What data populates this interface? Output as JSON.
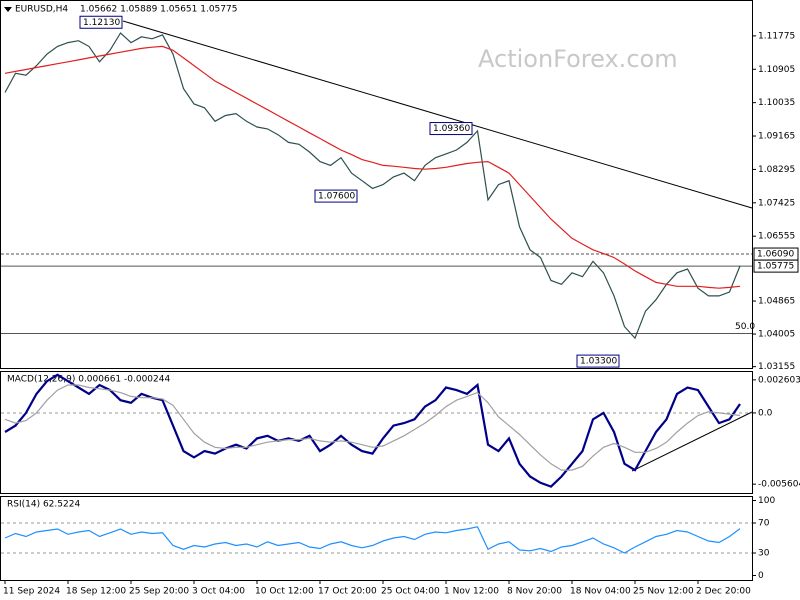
{
  "chart_data": [
    {
      "type": "line",
      "title": "EURUSD,H4",
      "subtitle": "1.05662 1.05889 1.05651 1.05775",
      "watermark": "ActionForex.com",
      "categories": [
        "11 Sep 2024",
        null,
        null,
        null,
        null,
        null,
        "18 Sep 12:00",
        null,
        null,
        null,
        null,
        null,
        "25 Sep 20:00",
        null,
        null,
        null,
        null,
        null,
        "3 Oct 04:00",
        null,
        null,
        null,
        null,
        null,
        "10 Oct 12:00",
        null,
        null,
        null,
        null,
        null,
        "17 Oct 20:00",
        null,
        null,
        null,
        null,
        null,
        "25 Oct 04:00",
        null,
        null,
        null,
        null,
        null,
        "1 Nov 12:00",
        null,
        null,
        null,
        null,
        null,
        "8 Nov 20:00",
        null,
        null,
        null,
        null,
        null,
        "18 Nov 04:00",
        null,
        null,
        null,
        null,
        null,
        "25 Nov 12:00",
        null,
        null,
        null,
        null,
        null,
        "2 Dec 20:00",
        null,
        null,
        null,
        null
      ],
      "series": [
        {
          "color": "#2f4f4f",
          "values": [
            1.103,
            1.108,
            1.1075,
            1.11,
            1.113,
            1.115,
            1.116,
            1.1165,
            1.115,
            1.111,
            1.114,
            1.1185,
            1.116,
            1.1175,
            1.117,
            1.118,
            1.113,
            1.104,
            1.1,
            1.099,
            1.0955,
            1.097,
            1.0975,
            1.0955,
            1.094,
            1.0935,
            1.092,
            1.09,
            1.0895,
            1.0875,
            1.085,
            1.084,
            1.086,
            1.082,
            1.08,
            1.078,
            1.079,
            1.081,
            1.082,
            1.08,
            1.084,
            1.086,
            1.087,
            1.088,
            1.09,
            1.093,
            1.075,
            1.079,
            1.08,
            1.068,
            1.062,
            1.06,
            1.054,
            1.053,
            1.056,
            1.055,
            1.059,
            1.056,
            1.05,
            1.042,
            1.039,
            1.046,
            1.049,
            1.053,
            1.056,
            1.057,
            1.052,
            1.05,
            1.05,
            1.051,
            1.0578
          ]
        },
        {
          "color": "#e02020",
          "values": [
            1.108,
            1.1085,
            1.109,
            1.1095,
            1.11,
            1.1105,
            1.111,
            1.1115,
            1.112,
            1.1125,
            1.113,
            1.1135,
            1.114,
            1.1145,
            1.1148,
            1.115,
            1.114,
            1.112,
            1.11,
            1.108,
            1.106,
            1.1045,
            1.103,
            1.1015,
            1.1,
            1.0985,
            1.097,
            1.0955,
            1.094,
            1.0925,
            1.091,
            1.0895,
            1.088,
            1.0868,
            1.0855,
            1.0848,
            1.084,
            1.0838,
            1.0835,
            1.0832,
            1.083,
            1.0832,
            1.0835,
            1.084,
            1.0845,
            1.0848,
            1.085,
            1.0835,
            1.082,
            1.079,
            1.076,
            1.073,
            1.07,
            1.0675,
            1.065,
            1.0635,
            1.062,
            1.061,
            1.06,
            1.0583,
            1.0565,
            1.055,
            1.0535,
            1.053,
            1.0525,
            1.0525,
            1.0525,
            1.0522,
            1.052,
            1.0522,
            1.0525
          ]
        }
      ],
      "ylim": [
        1.0312,
        1.1271
      ],
      "yticks": [
        1.11775,
        1.10905,
        1.10035,
        1.09165,
        1.08295,
        1.07425,
        1.06555,
        1.04865,
        1.04005,
        1.03155
      ],
      "hlines": [
        {
          "value": 1.0609,
          "label": "1.06090",
          "dashed": true
        },
        {
          "value": 1.05775,
          "label": "1.05775",
          "dashed": false
        }
      ],
      "fib_level": {
        "value": 1.0402,
        "label": "50.0"
      },
      "annotations": [
        {
          "value": 1.1213,
          "label": "1.12130"
        },
        {
          "value": 1.0936,
          "label": "1.09360"
        },
        {
          "value": 1.076,
          "label": "1.07600"
        },
        {
          "value": 1.033,
          "label": "1.03300"
        }
      ]
    },
    {
      "type": "line",
      "title": "MACD(12,26,9) 0.000661 -0.000244",
      "series": [
        {
          "color": "#00008b",
          "values": [
            -0.0015,
            -0.001,
            0,
            0.0015,
            0.0025,
            0.003,
            0.0025,
            0.002,
            0.0015,
            0.0022,
            0.0018,
            0.001,
            0.0008,
            0.0015,
            0.0012,
            0.001,
            -0.001,
            -0.003,
            -0.0035,
            -0.003,
            -0.0032,
            -0.0028,
            -0.0025,
            -0.0028,
            -0.002,
            -0.0018,
            -0.0022,
            -0.002,
            -0.0022,
            -0.0018,
            -0.003,
            -0.0025,
            -0.0018,
            -0.0025,
            -0.003,
            -0.0032,
            -0.002,
            -0.001,
            -0.0008,
            -0.0005,
            0.0005,
            0.001,
            0.002,
            0.0018,
            0.0015,
            0.0022,
            -0.0025,
            -0.003,
            -0.002,
            -0.004,
            -0.005,
            -0.0055,
            -0.0058,
            -0.005,
            -0.004,
            -0.003,
            -0.0005,
            0,
            -0.0015,
            -0.004,
            -0.0045,
            -0.003,
            -0.0015,
            -0.0005,
            0.0015,
            0.002,
            0.0018,
            0.0005,
            -0.0008,
            -0.0005,
            0.0007
          ]
        },
        {
          "color": "#a0a0a0",
          "values": [
            -0.0005,
            -0.0008,
            -0.0006,
            0,
            0.001,
            0.0018,
            0.0022,
            0.0022,
            0.002,
            0.0019,
            0.0018,
            0.0016,
            0.0013,
            0.0012,
            0.0012,
            0.0011,
            0.0006,
            -0.0005,
            -0.0016,
            -0.0023,
            -0.0027,
            -0.0028,
            -0.0027,
            -0.0027,
            -0.0025,
            -0.0023,
            -0.0022,
            -0.0021,
            -0.0021,
            -0.002,
            -0.0022,
            -0.0023,
            -0.0022,
            -0.0023,
            -0.0025,
            -0.0027,
            -0.0026,
            -0.0022,
            -0.0018,
            -0.0013,
            -0.0008,
            -0.0002,
            0.0005,
            0.001,
            0.0013,
            0.0016,
            0.0008,
            -0.0003,
            -0.001,
            -0.0017,
            -0.0025,
            -0.0033,
            -0.004,
            -0.0045,
            -0.0045,
            -0.0042,
            -0.0034,
            -0.0027,
            -0.0024,
            -0.0027,
            -0.0031,
            -0.0031,
            -0.0028,
            -0.0023,
            -0.0015,
            -0.0008,
            -0.0002,
            0.0001,
            0,
            -0.0001,
            -0.0002
          ]
        }
      ],
      "ylim": [
        -0.0063,
        0.0033
      ],
      "yticks": [
        0.002603,
        {
          "value": 0,
          "label": "0.0"
        },
        -0.005604
      ],
      "levels": [
        0
      ]
    },
    {
      "type": "line",
      "title": "RSI(14) 62.5224",
      "series": [
        {
          "color": "#1e90ff",
          "values": [
            50,
            56,
            52,
            58,
            60,
            62,
            55,
            58,
            60,
            52,
            57,
            62,
            55,
            58,
            56,
            57,
            40,
            35,
            40,
            38,
            42,
            44,
            40,
            42,
            38,
            45,
            40,
            42,
            44,
            38,
            36,
            42,
            45,
            40,
            37,
            40,
            46,
            50,
            52,
            48,
            55,
            58,
            57,
            60,
            62,
            65,
            35,
            42,
            45,
            34,
            33,
            36,
            32,
            38,
            40,
            45,
            50,
            42,
            37,
            30,
            38,
            45,
            52,
            55,
            60,
            58,
            52,
            46,
            44,
            52,
            62.5
          ]
        }
      ],
      "ylim": [
        -6,
        106
      ],
      "yticks": [
        100,
        70,
        30,
        0
      ],
      "levels": [
        70,
        30
      ]
    }
  ]
}
